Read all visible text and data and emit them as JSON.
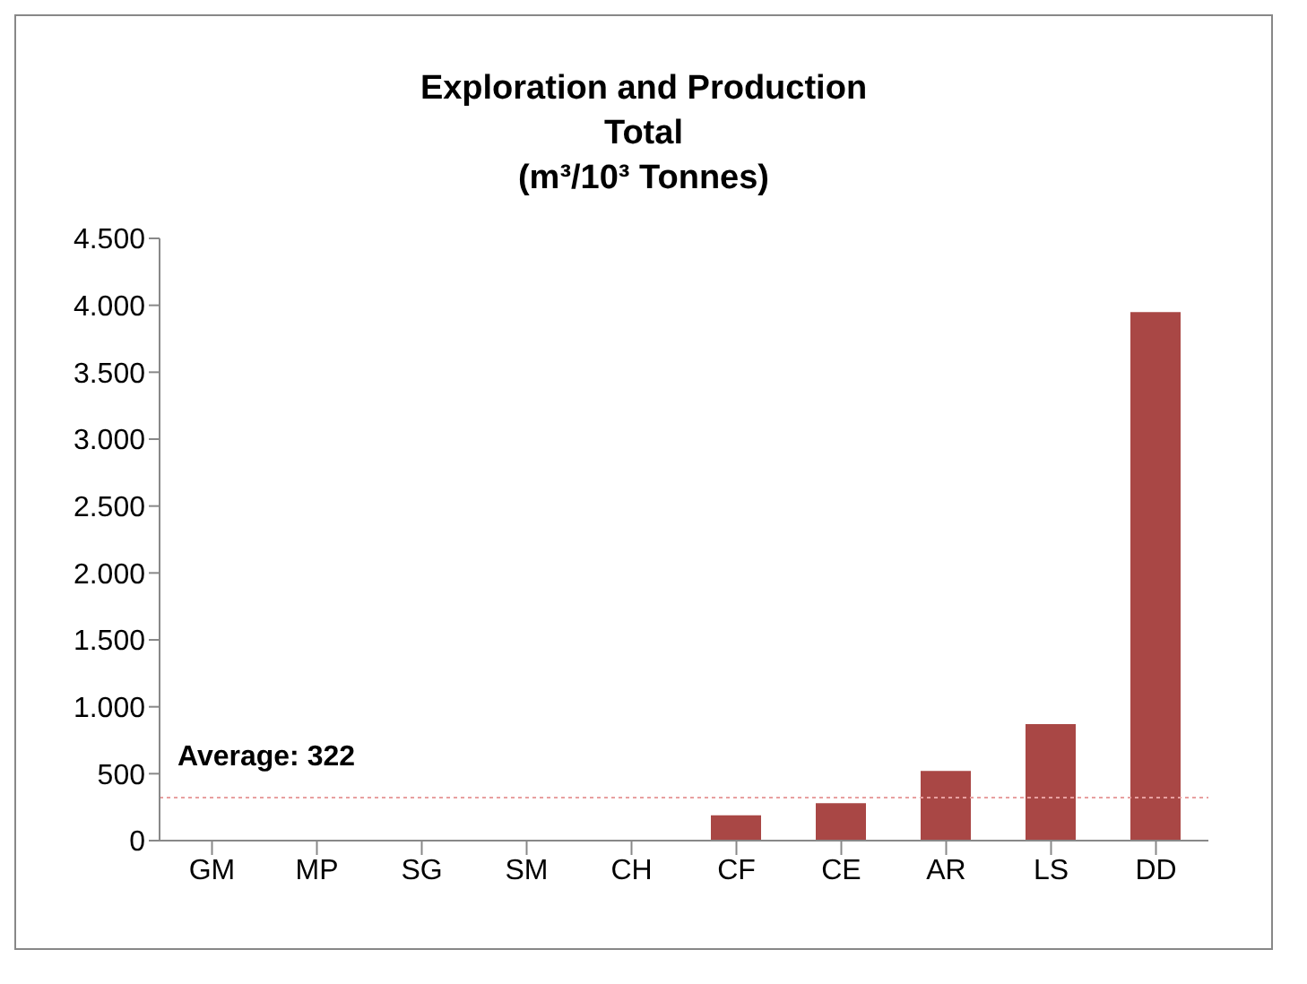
{
  "chart_data": {
    "type": "bar",
    "title": "Exploration and Production\nTotal\n(m³/10³ Tonnes)",
    "categories": [
      "GM",
      "MP",
      "SG",
      "SM",
      "CH",
      "CF",
      "CE",
      "AR",
      "LS",
      "DD"
    ],
    "values": [
      0,
      0,
      0,
      0,
      0,
      190,
      280,
      520,
      870,
      3950
    ],
    "color": "#a94745",
    "ylim": [
      0,
      4500
    ],
    "yticks": [
      {
        "value": 0,
        "label": "0"
      },
      {
        "value": 500,
        "label": "500"
      },
      {
        "value": 1000,
        "label": "1.000"
      },
      {
        "value": 1500,
        "label": "1.500"
      },
      {
        "value": 2000,
        "label": "2.000"
      },
      {
        "value": 2500,
        "label": "2.500"
      },
      {
        "value": 3000,
        "label": "3.000"
      },
      {
        "value": 3500,
        "label": "3.500"
      },
      {
        "value": 4000,
        "label": "4.000"
      },
      {
        "value": 4500,
        "label": "4.500"
      }
    ],
    "ref_lines": [
      {
        "axis": "y",
        "value": 322,
        "label": "Average: 322",
        "color": "#e8a0a0",
        "line_style": "dotted"
      }
    ],
    "grid": false,
    "legend": false
  }
}
